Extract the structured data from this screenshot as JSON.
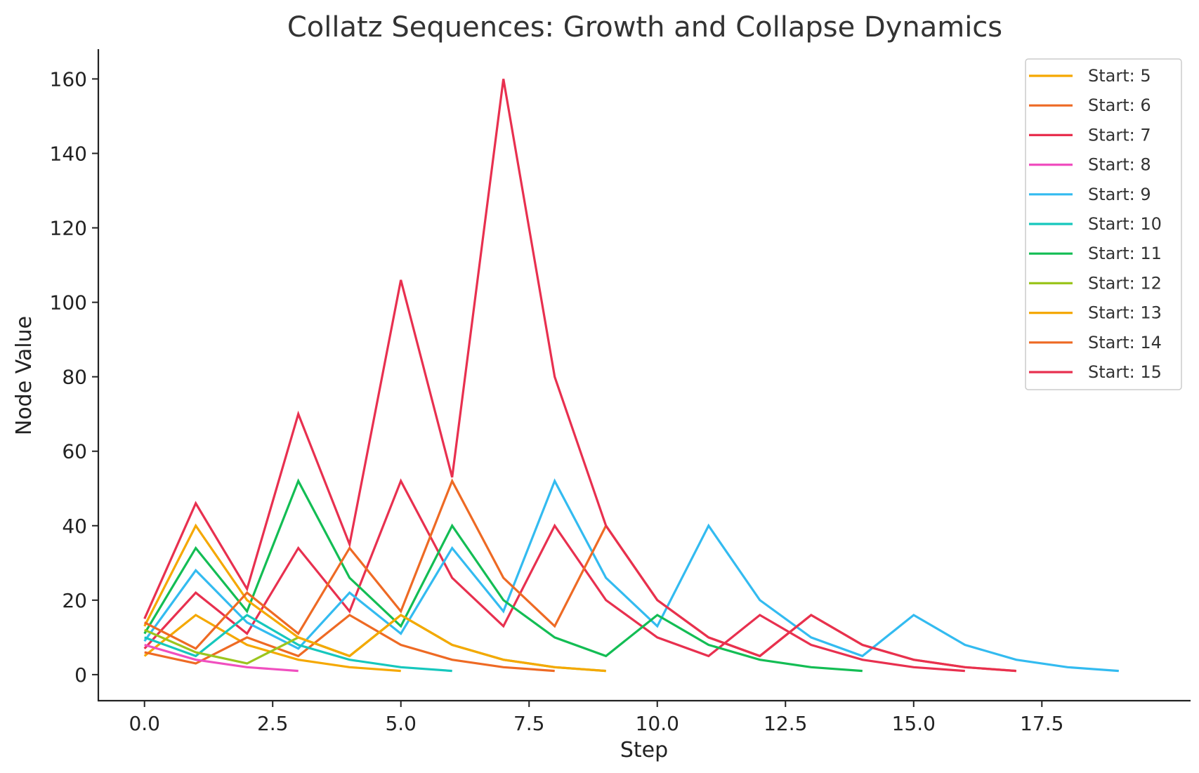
{
  "chart_data": {
    "type": "line",
    "title": "Collatz Sequences: Growth and Collapse Dynamics",
    "xlabel": "Step",
    "ylabel": "Node Value",
    "xlim": [
      -0.9,
      20.4
    ],
    "ylim": [
      -7,
      168
    ],
    "xticks": [
      0,
      2.5,
      5,
      7.5,
      10,
      12.5,
      15,
      17.5
    ],
    "xtick_labels": [
      "0.0",
      "2.5",
      "5.0",
      "7.5",
      "10.0",
      "12.5",
      "15.0",
      "17.5"
    ],
    "yticks": [
      0,
      20,
      40,
      60,
      80,
      100,
      120,
      140,
      160
    ],
    "ytick_labels": [
      "0",
      "20",
      "40",
      "60",
      "80",
      "100",
      "120",
      "140",
      "160"
    ],
    "grid": false,
    "legend_position": "top-right",
    "series": [
      {
        "name": "Start: 5",
        "color": "#f5a800",
        "values": [
          5,
          16,
          8,
          4,
          2,
          1
        ]
      },
      {
        "name": "Start: 6",
        "color": "#ee6a24",
        "values": [
          6,
          3,
          10,
          5,
          16,
          8,
          4,
          2,
          1
        ]
      },
      {
        "name": "Start: 7",
        "color": "#e8304f",
        "values": [
          7,
          22,
          11,
          34,
          17,
          52,
          26,
          13,
          40,
          20,
          10,
          5,
          16,
          8,
          4,
          2,
          1
        ]
      },
      {
        "name": "Start: 8",
        "color": "#f04fbf",
        "values": [
          8,
          4,
          2,
          1
        ]
      },
      {
        "name": "Start: 9",
        "color": "#33bbf0",
        "values": [
          9,
          28,
          14,
          7,
          22,
          11,
          34,
          17,
          52,
          26,
          13,
          40,
          20,
          10,
          5,
          16,
          8,
          4,
          2,
          1
        ]
      },
      {
        "name": "Start: 10",
        "color": "#16c7bd",
        "values": [
          10,
          5,
          16,
          8,
          4,
          2,
          1
        ]
      },
      {
        "name": "Start: 11",
        "color": "#13bd54",
        "values": [
          11,
          34,
          17,
          52,
          26,
          13,
          40,
          20,
          10,
          5,
          16,
          8,
          4,
          2,
          1
        ]
      },
      {
        "name": "Start: 12",
        "color": "#9bc51e",
        "values": [
          12,
          6,
          3,
          10,
          5,
          16,
          8,
          4,
          2,
          1
        ]
      },
      {
        "name": "Start: 13",
        "color": "#f5a800",
        "values": [
          13,
          40,
          20,
          10,
          5,
          16,
          8,
          4,
          2,
          1
        ]
      },
      {
        "name": "Start: 14",
        "color": "#ee6a24",
        "values": [
          14,
          7,
          22,
          11,
          34,
          17,
          52,
          26,
          13,
          40,
          20,
          10,
          5,
          16,
          8,
          4,
          2,
          1
        ]
      },
      {
        "name": "Start: 15",
        "color": "#e8304f",
        "values": [
          15,
          46,
          23,
          70,
          35,
          106,
          53,
          160,
          80,
          40,
          20,
          10,
          5,
          16,
          8,
          4,
          2,
          1
        ]
      }
    ]
  }
}
